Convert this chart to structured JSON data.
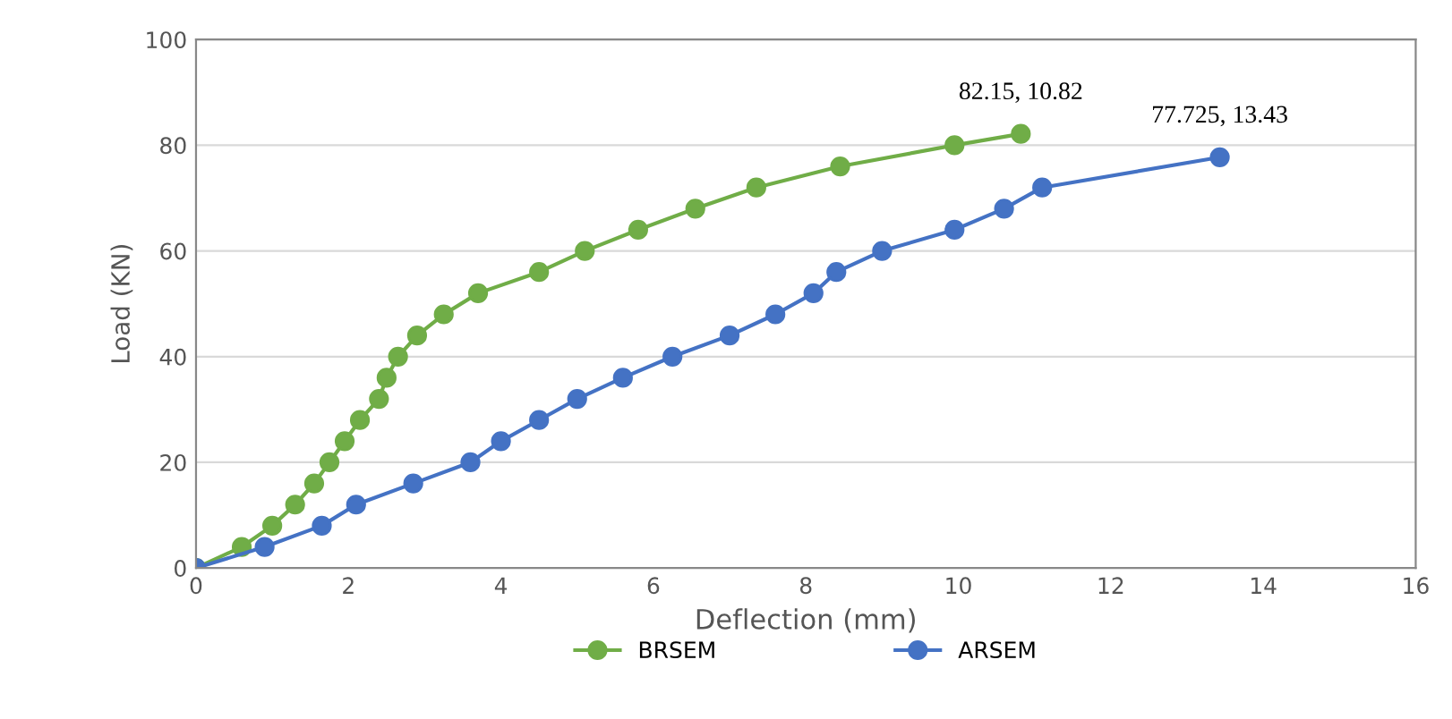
{
  "chart_data": {
    "type": "line",
    "xlabel": "Deflection (mm)",
    "ylabel": "Load (KN)",
    "xlim": [
      0,
      16
    ],
    "xticks": [
      0,
      2,
      4,
      6,
      8,
      10,
      12,
      14,
      16
    ],
    "ylim": [
      0,
      100
    ],
    "yticks": [
      0,
      20,
      40,
      60,
      80,
      100
    ],
    "grid": "y",
    "legend": "bottom",
    "marker": "circle",
    "series": [
      {
        "name": "BRSEM",
        "color": "#70ad47",
        "x": [
          0,
          0.6,
          1.0,
          1.3,
          1.55,
          1.75,
          1.95,
          2.15,
          2.4,
          2.5,
          2.65,
          2.9,
          3.25,
          3.7,
          4.5,
          5.1,
          5.8,
          6.55,
          7.35,
          8.45,
          9.95,
          10.82
        ],
        "values": [
          0,
          4,
          8,
          12,
          16,
          20,
          24,
          28,
          32,
          36,
          40,
          44,
          48,
          52,
          56,
          60,
          64,
          68,
          72,
          76,
          80,
          82.15
        ]
      },
      {
        "name": "ARSEM",
        "color": "#4472c4",
        "x": [
          0,
          0.9,
          1.65,
          2.1,
          2.85,
          3.6,
          4.0,
          4.5,
          5.0,
          5.6,
          6.25,
          7.0,
          7.6,
          8.1,
          8.4,
          9.0,
          9.95,
          10.6,
          11.1,
          13.43
        ],
        "values": [
          0,
          4,
          8,
          12,
          16,
          20,
          24,
          28,
          32,
          36,
          40,
          44,
          48,
          52,
          56,
          60,
          64,
          68,
          72,
          77.725
        ]
      }
    ],
    "annotations": [
      {
        "text": "82.15, 10.82",
        "x": 10.82,
        "y": 82.15
      },
      {
        "text": "77.725, 13.43",
        "x": 13.43,
        "y": 77.725
      }
    ]
  }
}
